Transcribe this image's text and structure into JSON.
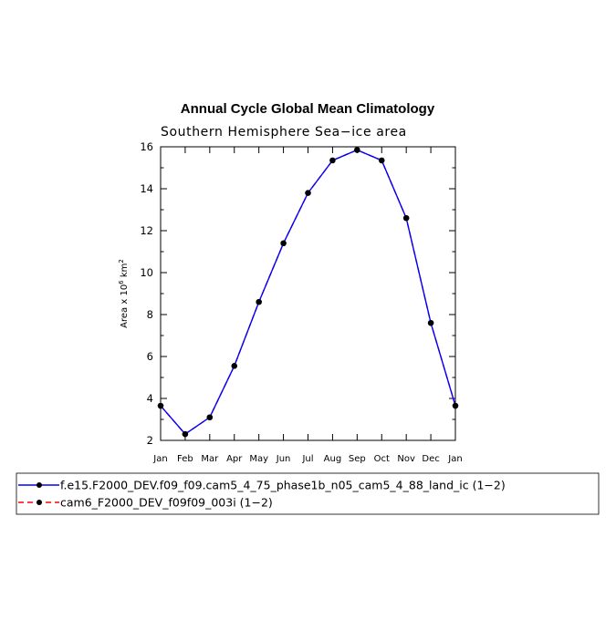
{
  "chart_data": {
    "type": "line",
    "title": "Annual Cycle Global Mean Climatology",
    "subtitle": "Southern Hemisphere Sea−ice area",
    "ylabel": "Area x 10^6 km^2",
    "ylabel_parts": {
      "prefix": "Area x 10",
      "sup1": "6",
      "mid": " km",
      "sup2": "2"
    },
    "ylim": [
      2,
      16
    ],
    "y_ticks": [
      "2",
      "4",
      "6",
      "8",
      "10",
      "12",
      "14",
      "16"
    ],
    "categories": [
      "Jan",
      "Feb",
      "Mar",
      "Apr",
      "May",
      "Jun",
      "Jul",
      "Aug",
      "Sep",
      "Oct",
      "Nov",
      "Dec",
      "Jan"
    ],
    "grid": false,
    "legend_position": "bottom",
    "series": [
      {
        "name": "f.e15.F2000_DEV.f09_f09.cam5_4_75_phase1b_n05_cam5_4_88_land_ic (1−2)",
        "color": "#0000ff",
        "line_style": "solid",
        "values": [
          3.65,
          2.3,
          3.1,
          5.55,
          8.6,
          11.4,
          13.8,
          15.35,
          15.85,
          15.35,
          12.6,
          7.6,
          3.65
        ]
      },
      {
        "name": "cam6_F2000_DEV_f09f09_003i (1−2)",
        "color": "#ff0000",
        "line_style": "dashed",
        "values": [
          3.65,
          2.3,
          3.1,
          5.55,
          8.6,
          11.4,
          13.8,
          15.35,
          15.85,
          15.35,
          12.6,
          7.6,
          3.65
        ]
      }
    ]
  }
}
